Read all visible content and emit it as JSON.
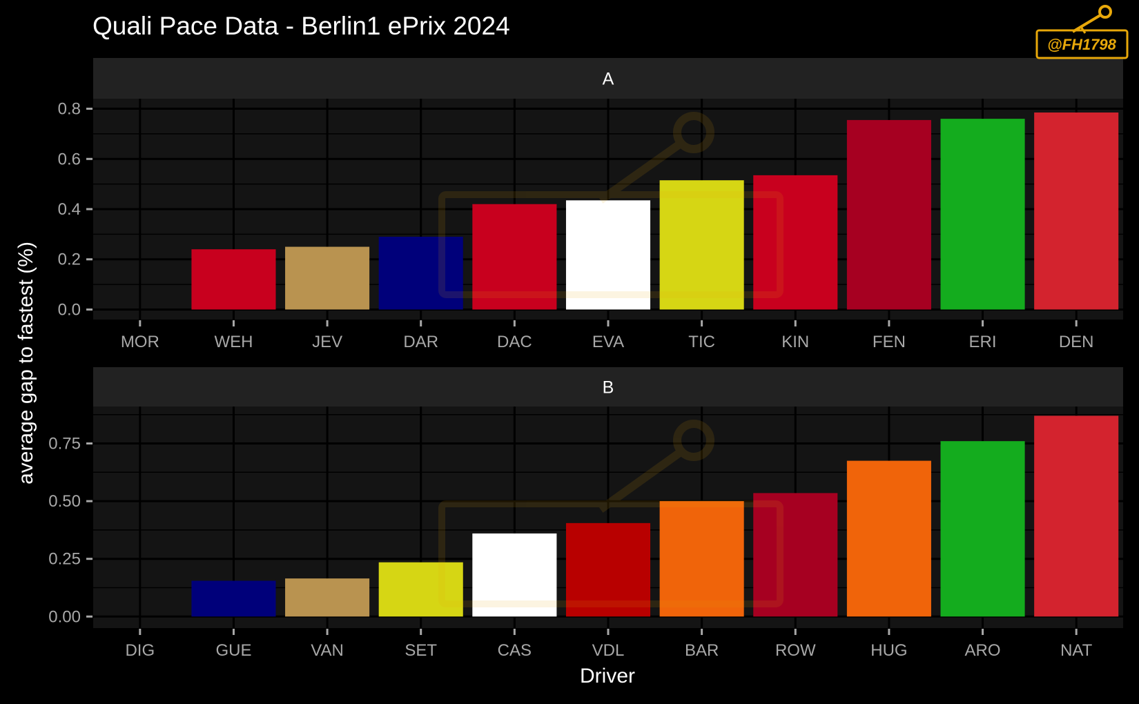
{
  "colors": {
    "page_background": "#000000",
    "panel_background": "#141414",
    "strip_background": "#222222",
    "gridline": "#000000",
    "tick_text": "#a8a8a8",
    "title_text": "#ffffff",
    "watermark": "#e8a80a"
  },
  "watermark": {
    "text": "@FH1798",
    "icon": "key-icon"
  },
  "chart_data": {
    "type": "bar",
    "title": "Quali Pace Data - Berlin1 ePrix 2024",
    "xlabel": "Driver",
    "ylabel": "average gap to fastest (%)",
    "grid": true,
    "panels": [
      {
        "label": "A",
        "ylim": [
          -0.04,
          0.84
        ],
        "yticks": [
          0.0,
          0.2,
          0.4,
          0.6,
          0.8
        ],
        "ytick_labels": [
          "0.0",
          "0.2",
          "0.4",
          "0.6",
          "0.8"
        ],
        "categories": [
          "MOR",
          "WEH",
          "JEV",
          "DAR",
          "DAC",
          "EVA",
          "TIC",
          "KIN",
          "FEN",
          "ERI",
          "DEN"
        ],
        "values": [
          0.0,
          0.24,
          0.25,
          0.29,
          0.42,
          0.435,
          0.515,
          0.535,
          0.755,
          0.76,
          0.785
        ],
        "colors": [
          "#141414",
          "#c8001e",
          "#b99350",
          "#00007a",
          "#c8001e",
          "#ffffff",
          "#d6d614",
          "#c8001e",
          "#a60021",
          "#14ac1e",
          "#d3232e"
        ]
      },
      {
        "label": "B",
        "ylim": [
          -0.05,
          0.91
        ],
        "yticks": [
          0.0,
          0.25,
          0.5,
          0.75
        ],
        "ytick_labels": [
          "0.00",
          "0.25",
          "0.50",
          "0.75"
        ],
        "categories": [
          "DIG",
          "GUE",
          "VAN",
          "SET",
          "CAS",
          "VDL",
          "BAR",
          "ROW",
          "HUG",
          "ARO",
          "NAT"
        ],
        "values": [
          0.0,
          0.155,
          0.165,
          0.235,
          0.36,
          0.405,
          0.5,
          0.535,
          0.675,
          0.76,
          0.87
        ],
        "colors": [
          "#141414",
          "#00007a",
          "#b99350",
          "#d6d614",
          "#ffffff",
          "#b80000",
          "#f0640a",
          "#a60021",
          "#f0640a",
          "#14ac1e",
          "#d3232e"
        ]
      }
    ]
  }
}
